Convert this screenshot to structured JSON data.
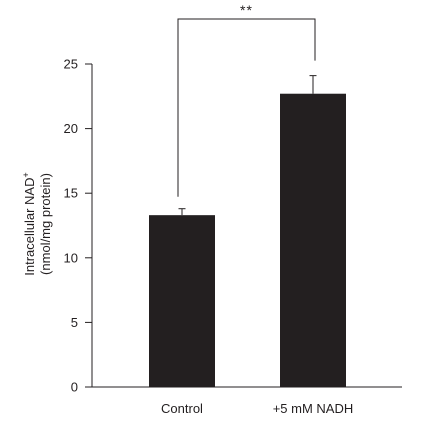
{
  "chart_data": {
    "type": "bar",
    "categories": [
      "Control",
      "+5 mM NADH"
    ],
    "values": [
      13.3,
      22.7
    ],
    "errors": [
      0.5,
      1.4
    ],
    "ylabel_line1": "Intracellular NAD",
    "ylabel_superscript": "+",
    "ylabel_line2": "(nmol/mg protein)",
    "ylim": [
      0,
      25
    ],
    "yticks": [
      0,
      5,
      10,
      15,
      20,
      25
    ],
    "significance": {
      "label": "**",
      "between": [
        0,
        1
      ]
    },
    "grid": false,
    "bar_color": "#231f20",
    "axis_color": "#231f20"
  }
}
